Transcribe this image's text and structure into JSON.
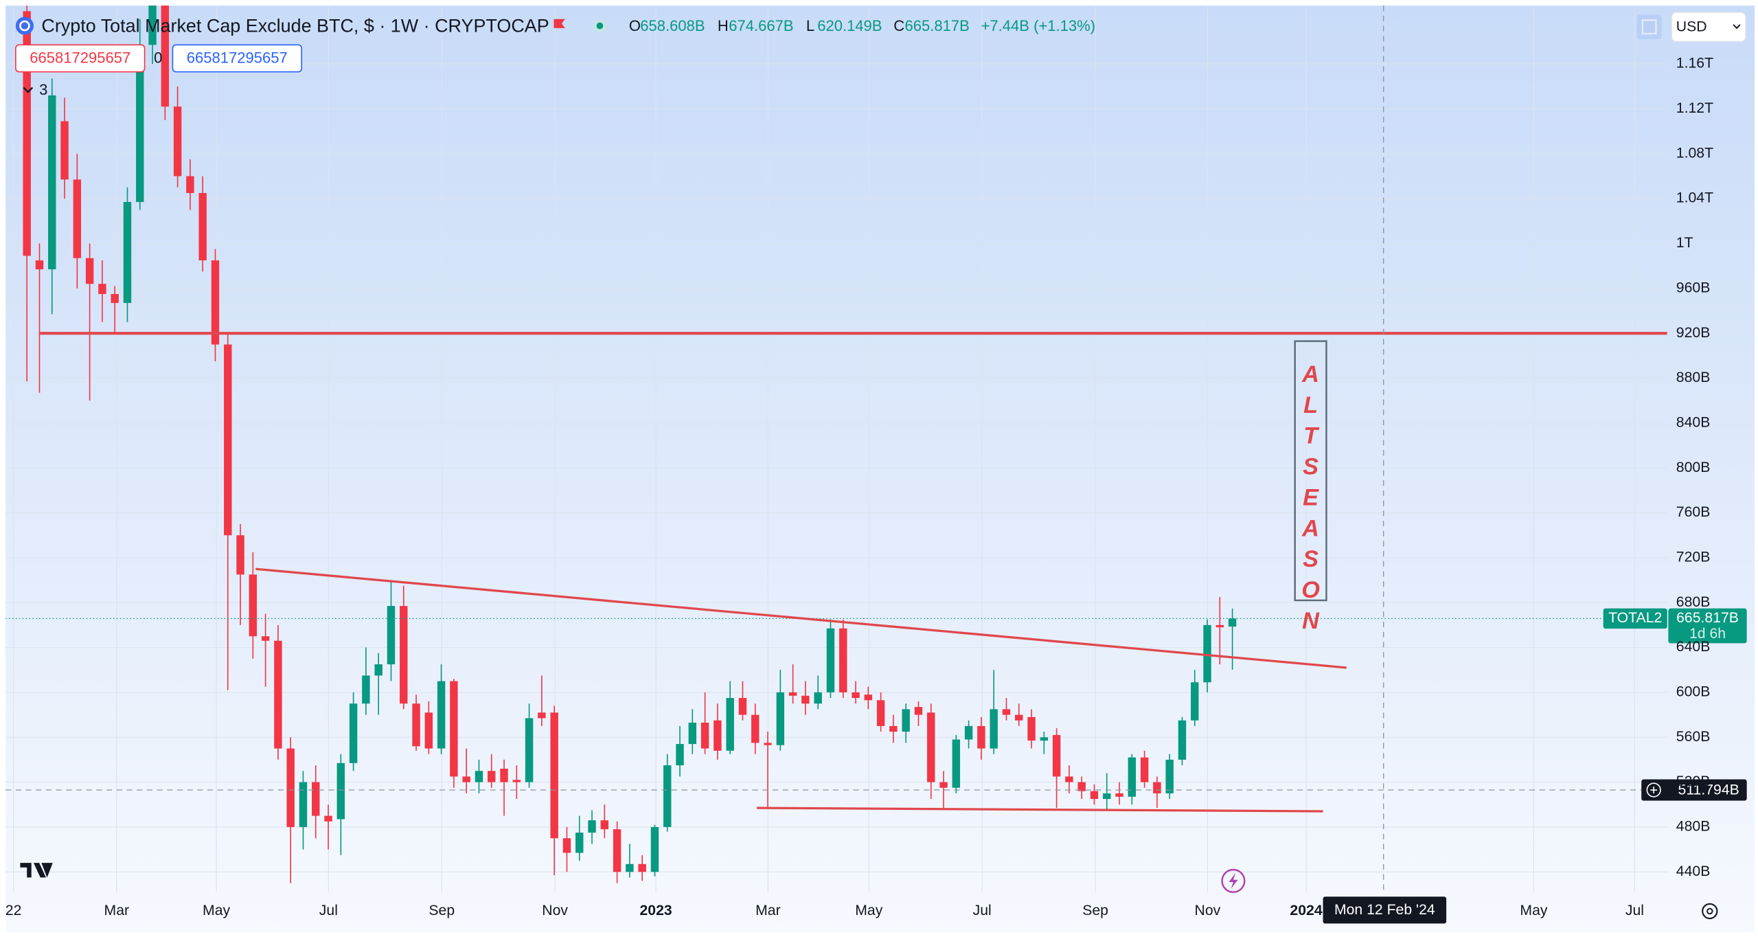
{
  "header": {
    "title": "Crypto Total Market Cap Exclude BTC, $ · 1W · CRYPTOCAP",
    "legend": [
      {
        "label": "O",
        "value": "658.608B"
      },
      {
        "label": "H",
        "value": "674.667B"
      },
      {
        "label": "L",
        "value": "620.149B"
      },
      {
        "label": "C",
        "value": "665.817B"
      }
    ],
    "change": "+7.44B (+1.13%)",
    "inputs": [
      "665817295657",
      "0",
      "665817295657"
    ],
    "indicator_count": "3",
    "currency": "USD"
  },
  "chart_data": {
    "type": "candlestick",
    "open": [
      1207,
      985,
      977,
      1109,
      1057,
      987,
      964,
      955,
      947,
      1037,
      1177,
      1230,
      1122,
      1060,
      1045,
      985,
      910,
      740,
      705,
      650,
      646,
      550,
      480,
      520,
      490,
      487,
      537,
      590,
      615,
      625,
      677,
      590,
      582,
      550,
      610,
      525,
      520,
      530,
      532,
      522,
      520,
      582,
      582,
      470,
      457,
      475,
      486,
      478,
      440,
      447,
      440,
      480,
      535,
      554,
      573,
      575,
      548,
      595,
      580,
      555,
      553,
      600,
      597,
      590,
      600,
      657,
      600,
      598,
      593,
      570,
      565,
      587,
      582,
      520,
      515,
      558,
      570,
      550,
      585,
      580,
      578,
      557,
      562,
      525,
      520,
      512,
      505,
      510,
      507,
      542,
      520,
      510,
      540,
      575,
      609,
      660,
      658.608
    ],
    "high": [
      1240,
      1000,
      1147,
      1130,
      1080,
      1000,
      985,
      962,
      1050,
      1200,
      1250,
      1240,
      1140,
      1075,
      1060,
      995,
      920,
      750,
      725,
      670,
      660,
      560,
      530,
      535,
      500,
      545,
      600,
      640,
      635,
      700,
      695,
      598,
      592,
      625,
      612,
      550,
      540,
      545,
      540,
      535,
      590,
      615,
      588,
      480,
      490,
      495,
      500,
      485,
      465,
      455,
      482,
      545,
      570,
      585,
      600,
      590,
      610,
      610,
      590,
      565,
      620,
      625,
      610,
      615,
      665,
      665,
      610,
      605,
      600,
      580,
      590,
      592,
      590,
      530,
      562,
      575,
      578,
      620,
      595,
      590,
      585,
      565,
      568,
      535,
      525,
      518,
      528,
      520,
      545,
      548,
      525,
      545,
      578,
      620,
      665,
      685,
      674.667
    ],
    "low": [
      877,
      867,
      937,
      1040,
      960,
      860,
      930,
      920,
      930,
      1030,
      1160,
      1110,
      1050,
      1030,
      975,
      895,
      602,
      660,
      630,
      605,
      540,
      430,
      460,
      470,
      460,
      455,
      530,
      580,
      580,
      610,
      585,
      548,
      545,
      545,
      515,
      510,
      510,
      515,
      490,
      505,
      515,
      570,
      437,
      440,
      450,
      465,
      470,
      430,
      435,
      432,
      436,
      476,
      525,
      545,
      545,
      540,
      545,
      575,
      545,
      497,
      548,
      590,
      580,
      585,
      595,
      595,
      590,
      585,
      565,
      555,
      555,
      570,
      505,
      497,
      510,
      550,
      540,
      545,
      575,
      570,
      550,
      545,
      497,
      510,
      505,
      500,
      495,
      500,
      500,
      515,
      497,
      505,
      535,
      570,
      600,
      625,
      620.149
    ],
    "close": [
      989,
      977,
      1132,
      1057,
      987,
      964,
      955,
      947,
      1037,
      1177,
      1230,
      1122,
      1060,
      1045,
      985,
      910,
      740,
      705,
      650,
      646,
      550,
      480,
      520,
      490,
      485,
      537,
      590,
      615,
      625,
      677,
      590,
      552,
      550,
      610,
      525,
      520,
      530,
      520,
      520,
      520,
      577,
      577,
      470,
      457,
      475,
      486,
      478,
      440,
      447,
      440,
      480,
      535,
      554,
      573,
      550,
      548,
      595,
      580,
      555,
      553,
      600,
      597,
      590,
      600,
      657,
      600,
      595,
      593,
      570,
      565,
      585,
      580,
      520,
      515,
      558,
      570,
      550,
      585,
      580,
      575,
      557,
      560,
      525,
      520,
      512,
      505,
      510,
      507,
      542,
      520,
      510,
      540,
      575,
      609,
      660,
      658,
      665.817
    ],
    "up_color": "#089981",
    "down_color": "#f23645",
    "line_color": "#e0474c",
    "ylim": [
      422,
      1212
    ],
    "yticks": [
      {
        "value": 440,
        "label": "440B"
      },
      {
        "value": 480,
        "label": "480B"
      },
      {
        "value": 520,
        "label": "520B"
      },
      {
        "value": 560,
        "label": "560B"
      },
      {
        "value": 600,
        "label": "600B"
      },
      {
        "value": 640,
        "label": "640B"
      },
      {
        "value": 680,
        "label": "680B"
      },
      {
        "value": 720,
        "label": "720B"
      },
      {
        "value": 760,
        "label": "760B"
      },
      {
        "value": 800,
        "label": "800B"
      },
      {
        "value": 840,
        "label": "840B"
      },
      {
        "value": 880,
        "label": "880B"
      },
      {
        "value": 920,
        "label": "920B"
      },
      {
        "value": 960,
        "label": "960B"
      },
      {
        "value": 1000,
        "label": "1T"
      },
      {
        "value": 1040,
        "label": "1.04T"
      },
      {
        "value": 1080,
        "label": "1.08T"
      },
      {
        "value": 1120,
        "label": "1.12T"
      },
      {
        "value": 1160,
        "label": "1.16T"
      }
    ],
    "xtick_labels": [
      "22",
      "Mar",
      "May",
      "Jul",
      "Sep",
      "Nov",
      "2023",
      "Mar",
      "May",
      "Jul",
      "Sep",
      "Nov",
      "2024",
      "May",
      "Jul"
    ],
    "grid": true,
    "symbol_tag": "TOTAL2",
    "last_price_label": "665.817B",
    "countdown": "1d 6h",
    "crosshair_price": "511.794B",
    "crosshair_date": "Mon 12 Feb '24",
    "annotation": "ALTSEASON"
  }
}
